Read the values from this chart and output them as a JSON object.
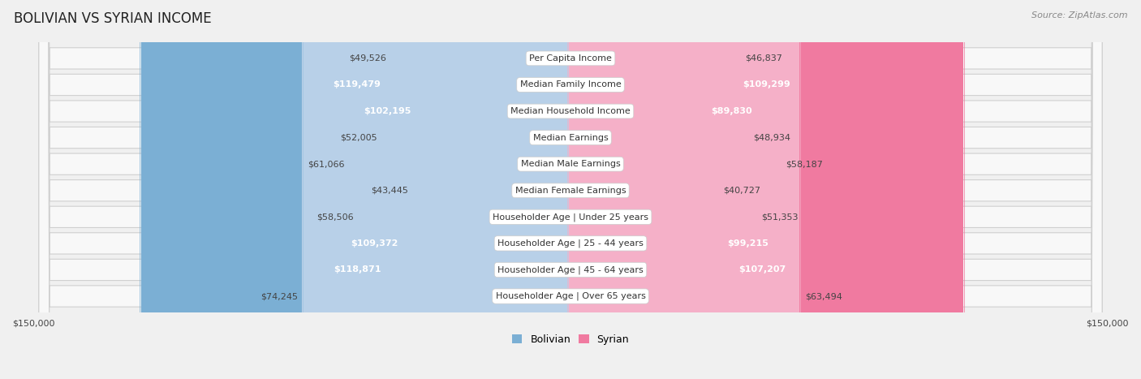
{
  "title": "BOLIVIAN VS SYRIAN INCOME",
  "source": "Source: ZipAtlas.com",
  "max_value": 150000,
  "categories": [
    "Per Capita Income",
    "Median Family Income",
    "Median Household Income",
    "Median Earnings",
    "Median Male Earnings",
    "Median Female Earnings",
    "Householder Age | Under 25 years",
    "Householder Age | 25 - 44 years",
    "Householder Age | 45 - 64 years",
    "Householder Age | Over 65 years"
  ],
  "bolivian": [
    49526,
    119479,
    102195,
    52005,
    61066,
    43445,
    58506,
    109372,
    118871,
    74245
  ],
  "syrian": [
    46837,
    109299,
    89830,
    48934,
    58187,
    40727,
    51353,
    99215,
    107207,
    63494
  ],
  "bolivian_color": "#7bafd4",
  "syrian_color": "#f07aa0",
  "bolivian_light_color": "#b8d0e8",
  "syrian_light_color": "#f5b0c8",
  "bolivian_label_color_threshold": 75000,
  "syrian_label_color_threshold": 75000,
  "background_color": "#f0f0f0",
  "row_bg": "#f8f8f8",
  "row_border": "#d0d0d0",
  "title_fontsize": 12,
  "label_fontsize": 8,
  "value_fontsize": 8,
  "legend_fontsize": 9,
  "source_fontsize": 8
}
